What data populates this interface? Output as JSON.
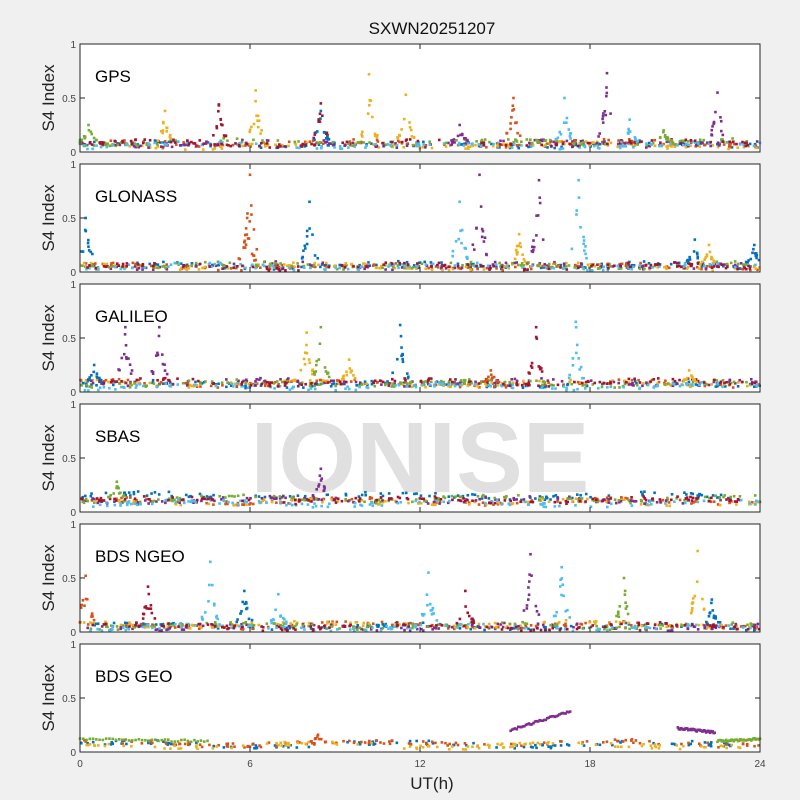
{
  "title": "SXWN20251207",
  "watermark": "IONISE",
  "colors": [
    "#0072BD",
    "#D95319",
    "#EDB120",
    "#7E2F8E",
    "#77AC30",
    "#4DBEEE",
    "#A2142F"
  ],
  "chart_data": {
    "type": "scatter",
    "title": "SXWN20251207",
    "xlabel": "UT(h)",
    "ylabel": "S4 Index",
    "xlim": [
      0,
      24
    ],
    "ylim": [
      0,
      1
    ],
    "xticks": [
      "0",
      "6",
      "12",
      "18",
      "24"
    ],
    "yticks": [
      "0",
      "0.5",
      "1"
    ],
    "grid": false,
    "panels": [
      {
        "label": "GPS",
        "baseline": [
          0.07,
          0.08,
          0.06,
          0.08,
          0.09,
          0.06,
          0.08
        ],
        "peaks": [
          [
            0.3,
            0.25,
            4
          ],
          [
            3.0,
            0.38,
            2
          ],
          [
            4.9,
            0.44,
            6
          ],
          [
            6.2,
            0.57,
            2
          ],
          [
            8.5,
            0.45,
            6
          ],
          [
            8.5,
            0.38,
            0
          ],
          [
            10.2,
            0.72,
            2
          ],
          [
            11.5,
            0.53,
            2
          ],
          [
            13.4,
            0.25,
            3
          ],
          [
            15.3,
            0.5,
            1
          ],
          [
            17.1,
            0.5,
            5
          ],
          [
            18.6,
            0.73,
            3
          ],
          [
            19.4,
            0.3,
            5
          ],
          [
            20.6,
            0.2,
            4
          ],
          [
            22.5,
            0.55,
            3
          ]
        ]
      },
      {
        "label": "GLONASS",
        "baseline": [
          0.06,
          0.05,
          0.05,
          0.06,
          0.06,
          0.05,
          0.05
        ],
        "peaks": [
          [
            0.2,
            0.5,
            0
          ],
          [
            5.9,
            0.5,
            1
          ],
          [
            6.0,
            0.9,
            1
          ],
          [
            8.1,
            0.65,
            0
          ],
          [
            13.4,
            0.65,
            5
          ],
          [
            14.1,
            0.9,
            3
          ],
          [
            15.5,
            0.35,
            2
          ],
          [
            16.2,
            0.85,
            3
          ],
          [
            17.6,
            0.85,
            5
          ],
          [
            21.7,
            0.3,
            0
          ],
          [
            22.2,
            0.25,
            2
          ],
          [
            23.8,
            0.25,
            0
          ]
        ]
      },
      {
        "label": "GALILEO",
        "baseline": [
          0.07,
          0.08,
          0.08,
          0.09,
          0.08,
          0.05,
          0.09
        ],
        "peaks": [
          [
            0.5,
            0.25,
            0
          ],
          [
            1.6,
            0.6,
            3
          ],
          [
            2.8,
            0.6,
            3
          ],
          [
            8.0,
            0.55,
            2
          ],
          [
            8.5,
            0.6,
            4
          ],
          [
            9.5,
            0.3,
            2
          ],
          [
            11.3,
            0.62,
            0
          ],
          [
            14.5,
            0.2,
            1
          ],
          [
            16.1,
            0.6,
            6
          ],
          [
            17.5,
            0.65,
            5
          ],
          [
            21.5,
            0.2,
            2
          ]
        ]
      },
      {
        "label": "SBAS",
        "baseline": [
          0.15,
          0.1,
          0.09,
          0.11,
          0.12,
          0.08,
          0.11
        ],
        "peaks": [
          [
            8.5,
            0.4,
            3
          ],
          [
            1.3,
            0.28,
            4
          ]
        ]
      },
      {
        "label": "BDS NGEO",
        "baseline": [
          0.05,
          0.06,
          0.07,
          0.05,
          0.06,
          0.04,
          0.05
        ],
        "peaks": [
          [
            0.2,
            0.52,
            1
          ],
          [
            2.4,
            0.42,
            6
          ],
          [
            4.6,
            0.65,
            5
          ],
          [
            5.8,
            0.38,
            0
          ],
          [
            7.0,
            0.35,
            5
          ],
          [
            12.3,
            0.55,
            5
          ],
          [
            13.6,
            0.38,
            6
          ],
          [
            15.9,
            0.72,
            3
          ],
          [
            17.0,
            0.6,
            5
          ],
          [
            19.2,
            0.5,
            4
          ],
          [
            21.8,
            0.75,
            2
          ],
          [
            22.3,
            0.3,
            0
          ]
        ]
      },
      {
        "label": "BDS GEO",
        "baseline": [
          0.07,
          0.08,
          0.06,
          null,
          null,
          null,
          null
        ],
        "segments": [
          {
            "color": 4,
            "x": [
              0,
              4.5
            ],
            "y": [
              0.12,
              0.1
            ]
          },
          {
            "color": 4,
            "x": [
              22.5,
              24
            ],
            "y": [
              0.1,
              0.12
            ]
          },
          {
            "color": 3,
            "x": [
              15.2,
              17.3
            ],
            "y": [
              0.2,
              0.38
            ]
          },
          {
            "color": 3,
            "x": [
              21.1,
              22.4
            ],
            "y": [
              0.22,
              0.18
            ]
          }
        ],
        "peaks": [
          [
            8.4,
            0.16,
            1
          ]
        ]
      }
    ]
  }
}
